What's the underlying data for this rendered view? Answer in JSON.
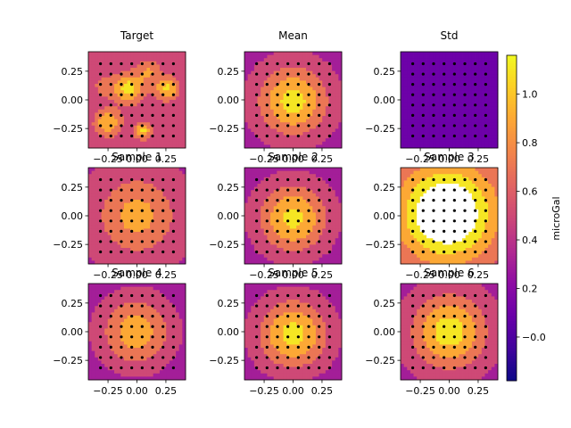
{
  "chart_data": {
    "type": "heatmap",
    "colormap": "plasma",
    "colorbar": {
      "label": "microGal",
      "range": [
        -0.18,
        1.16
      ],
      "ticks": [
        -0.0,
        0.2,
        0.4,
        0.6,
        0.8,
        1.0
      ],
      "tick_labels": [
        "−0.0",
        "0.2",
        "0.4",
        "0.6",
        "0.8",
        "1.0"
      ]
    },
    "x_ticks": [
      -0.25,
      0.0,
      0.25
    ],
    "x_tick_labels": [
      "−0.25",
      "0.00",
      "0.25"
    ],
    "y_ticks": [
      0.25,
      0.0,
      -0.25
    ],
    "y_tick_labels": [
      "0.25",
      "0.00",
      "−0.25"
    ],
    "xlim": [
      -0.42,
      0.42
    ],
    "ylim": [
      -0.42,
      0.42
    ],
    "sensor_grid": {
      "x": [
        -0.315,
        -0.225,
        -0.135,
        -0.045,
        0.045,
        0.135,
        0.225,
        0.315
      ],
      "y": [
        0.315,
        0.225,
        0.135,
        0.045,
        -0.045,
        -0.135,
        -0.225,
        -0.315
      ]
    },
    "panels": [
      {
        "title": "Target",
        "field": {
          "type": "blobs",
          "base": 0.45,
          "blobs": [
            {
              "x": -0.07,
              "y": 0.1,
              "amp": 0.65,
              "s": 0.09
            },
            {
              "x": 0.26,
              "y": 0.1,
              "amp": 0.6,
              "s": 0.07
            },
            {
              "x": -0.25,
              "y": -0.2,
              "amp": 0.55,
              "s": 0.08
            },
            {
              "x": 0.05,
              "y": -0.27,
              "amp": 0.6,
              "s": 0.05
            },
            {
              "x": 0.1,
              "y": 0.25,
              "amp": 0.35,
              "s": 0.07
            },
            {
              "x": -0.28,
              "y": 0.12,
              "amp": 0.25,
              "s": 0.07
            }
          ]
        }
      },
      {
        "title": "Mean",
        "field": {
          "type": "gauss",
          "peak": 1.08,
          "base": 0.32,
          "sigma": 0.21,
          "cx": 0.0,
          "cy": -0.01
        }
      },
      {
        "title": "Std",
        "field": {
          "type": "const",
          "value": 0.03
        }
      },
      {
        "title": "Sample 1",
        "field": {
          "type": "gauss",
          "peak": 0.88,
          "base": 0.36,
          "sigma": 0.24,
          "cx": 0.0,
          "cy": 0.0
        }
      },
      {
        "title": "Sample 2",
        "field": {
          "type": "gauss",
          "peak": 1.06,
          "base": 0.3,
          "sigma": 0.21,
          "cx": 0.0,
          "cy": -0.02
        }
      },
      {
        "title": "Sample 3",
        "field": {
          "type": "gauss",
          "peak": 1.55,
          "base": 0.45,
          "sigma": 0.3,
          "cx": -0.02,
          "cy": 0.02
        }
      },
      {
        "title": "Sample 4",
        "field": {
          "type": "gauss",
          "peak": 0.92,
          "base": 0.28,
          "sigma": 0.22,
          "cx": -0.01,
          "cy": 0.0
        }
      },
      {
        "title": "Sample 5",
        "field": {
          "type": "gauss",
          "peak": 1.08,
          "base": 0.3,
          "sigma": 0.21,
          "cx": 0.0,
          "cy": -0.02
        }
      },
      {
        "title": "Sample 6",
        "field": {
          "type": "gauss",
          "peak": 1.1,
          "base": 0.32,
          "sigma": 0.23,
          "cx": 0.0,
          "cy": 0.0
        }
      }
    ]
  }
}
